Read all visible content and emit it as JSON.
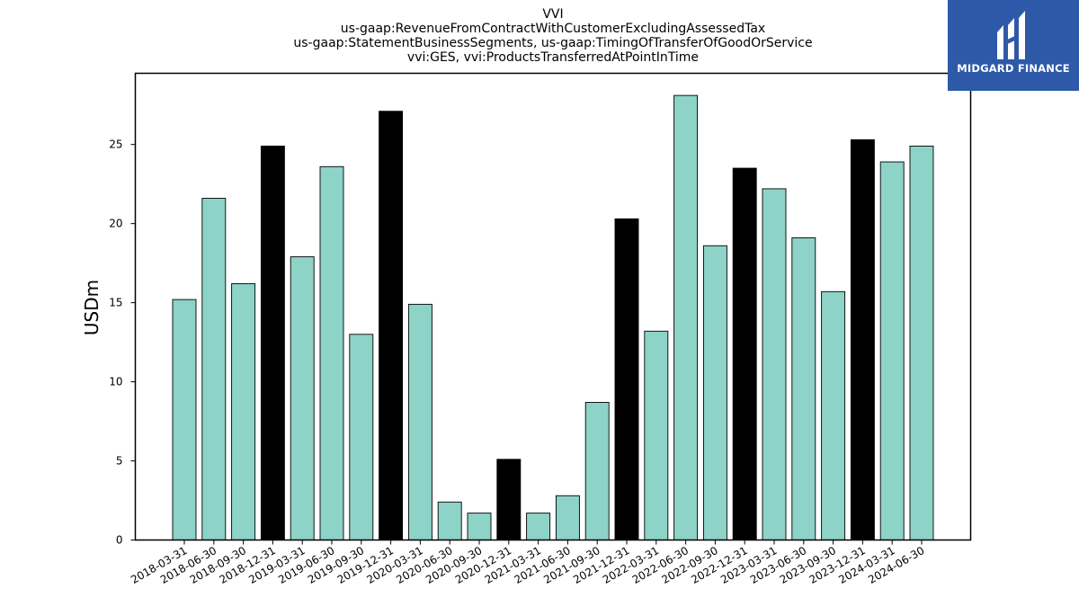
{
  "chart_data": {
    "type": "bar",
    "title_lines": [
      "VVI",
      "us-gaap:RevenueFromContractWithCustomerExcludingAssessedTax",
      "us-gaap:StatementBusinessSegments, us-gaap:TimingOfTransferOfGoodOrService",
      "vvi:GES, vvi:ProductsTransferredAtPointInTime"
    ],
    "ylabel": "USDm",
    "xlabel": "",
    "ylim": [
      0,
      29.5
    ],
    "yticks": [
      0,
      5,
      10,
      15,
      20,
      25
    ],
    "categories": [
      "2018-03-31",
      "2018-06-30",
      "2018-09-30",
      "2018-12-31",
      "2019-03-31",
      "2019-06-30",
      "2019-09-30",
      "2019-12-31",
      "2020-03-31",
      "2020-06-30",
      "2020-09-30",
      "2020-12-31",
      "2021-03-31",
      "2021-06-30",
      "2021-09-30",
      "2021-12-31",
      "2022-03-31",
      "2022-06-30",
      "2022-09-30",
      "2022-12-31",
      "2023-03-31",
      "2023-06-30",
      "2023-09-30",
      "2023-12-31",
      "2024-03-31",
      "2024-06-30"
    ],
    "values": [
      15.2,
      21.6,
      16.2,
      24.9,
      17.9,
      23.6,
      13.0,
      27.1,
      14.9,
      2.4,
      1.7,
      5.1,
      1.7,
      2.8,
      8.7,
      20.3,
      13.2,
      28.1,
      18.6,
      23.5,
      22.2,
      19.1,
      15.7,
      25.3,
      23.9,
      24.9
    ],
    "highlight": [
      false,
      false,
      false,
      true,
      false,
      false,
      false,
      true,
      false,
      false,
      false,
      true,
      false,
      false,
      false,
      true,
      false,
      false,
      false,
      true,
      false,
      false,
      false,
      true,
      false,
      false
    ],
    "colors": {
      "bar": "#8dd3c7",
      "highlight_bar": "#000000",
      "edge": "#000000"
    },
    "grid": false,
    "legend": "none"
  },
  "logo": {
    "text": "MIDGARD FINANCE",
    "bg_color": "#2e59a8",
    "icon": "midgard-m-logo-icon"
  }
}
